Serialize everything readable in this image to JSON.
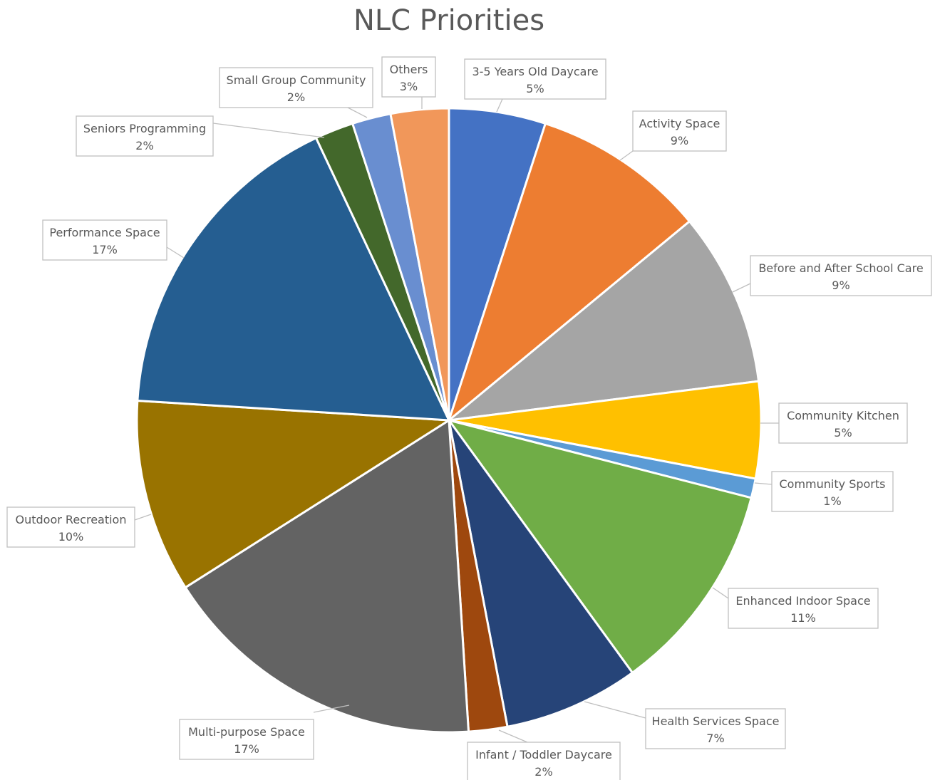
{
  "chart_data": {
    "type": "pie",
    "title": "NLC Priorities",
    "slices": [
      {
        "name": "3-5 Years Old Daycare",
        "value": 5,
        "label": "5%",
        "color": "#4472C4"
      },
      {
        "name": "Activity Space",
        "value": 9,
        "label": "9%",
        "color": "#ED7D31"
      },
      {
        "name": "Before and After School Care",
        "value": 9,
        "label": "9%",
        "color": "#A5A5A5"
      },
      {
        "name": "Community Kitchen",
        "value": 5,
        "label": "5%",
        "color": "#FFC000"
      },
      {
        "name": "Community Sports",
        "value": 1,
        "label": "1%",
        "color": "#5B9BD5"
      },
      {
        "name": "Enhanced Indoor Space",
        "value": 11,
        "label": "11%",
        "color": "#70AD47"
      },
      {
        "name": "Health Services Space",
        "value": 7,
        "label": "7%",
        "color": "#264478"
      },
      {
        "name": "Infant / Toddler Daycare",
        "value": 2,
        "label": "2%",
        "color": "#9E480E"
      },
      {
        "name": "Multi-purpose Space",
        "value": 17,
        "label": "17%",
        "color": "#636363"
      },
      {
        "name": "Outdoor Recreation",
        "value": 10,
        "label": "10%",
        "color": "#997300"
      },
      {
        "name": "Performance Space",
        "value": 17,
        "label": "17%",
        "color": "#255E91"
      },
      {
        "name": "Seniors Programming",
        "value": 2,
        "label": "2%",
        "color": "#43682B"
      },
      {
        "name": "Small Group Community",
        "value": 2,
        "label": "2%",
        "color": "#698ED0"
      },
      {
        "name": "Others",
        "value": 3,
        "label": "3%",
        "color": "#F1975A"
      }
    ],
    "start_angle_deg": 0,
    "direction": "clockwise",
    "legend": "none",
    "data_labels": "callouts"
  }
}
